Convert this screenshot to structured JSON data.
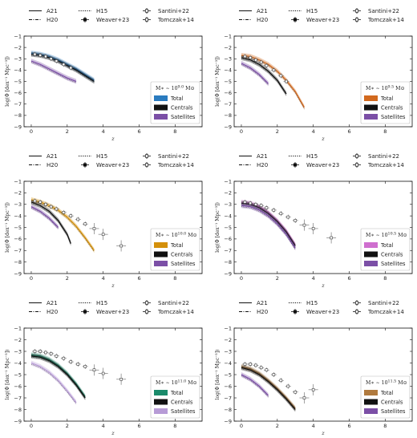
{
  "chart_data": [
    {
      "type": "line",
      "mass_label": "M∗ ∼ 10^9.0 M⊙",
      "xlabel": "z",
      "ylabel": "log(Φ [dex⁻¹ Mpc⁻³])",
      "xlim": [
        -0.4,
        9.5
      ],
      "ylim": [
        -9,
        -1
      ],
      "xticks": [
        0,
        2,
        4,
        6,
        8
      ],
      "yticks": [
        -9,
        -8,
        -7,
        -6,
        -5,
        -4,
        -3,
        -2,
        -1
      ],
      "legend": [
        "A21",
        "H15",
        "Santini+22",
        "H20",
        "Weaver+23",
        "Tomczak+14"
      ],
      "inset_legend": [
        "Total",
        "Centrals",
        "Satellites"
      ],
      "colors": {
        "total": "#2a7bbf",
        "centrals": "#111111",
        "satellites": "#7b4fa6"
      },
      "series": [
        {
          "name": "Total",
          "x": [
            0,
            0.5,
            1,
            1.5,
            2,
            2.5,
            3,
            3.5
          ],
          "y": [
            -2.5,
            -2.6,
            -2.8,
            -3.1,
            -3.5,
            -3.9,
            -4.4,
            -4.9
          ]
        },
        {
          "name": "Centrals",
          "x": [
            0,
            0.5,
            1,
            1.5,
            2,
            2.5,
            3,
            3.5
          ],
          "y": [
            -2.6,
            -2.7,
            -2.9,
            -3.2,
            -3.6,
            -4.0,
            -4.5,
            -5.0
          ]
        },
        {
          "name": "Satellites",
          "x": [
            0,
            0.5,
            1,
            1.5,
            2,
            2.5
          ],
          "y": [
            -3.2,
            -3.5,
            -3.9,
            -4.3,
            -4.7,
            -5.0
          ]
        }
      ],
      "observations": [
        {
          "x": [
            0.2,
            0.5,
            0.8,
            1.1,
            1.4,
            1.8,
            2.2
          ],
          "y": [
            -2.6,
            -2.7,
            -2.8,
            -3.0,
            -3.2,
            -3.5,
            -3.8
          ]
        }
      ]
    },
    {
      "type": "line",
      "mass_label": "M∗ ∼ 10^9.5 M⊙",
      "xlabel": "z",
      "ylabel": "log(Φ [dex⁻¹ Mpc⁻³])",
      "xlim": [
        -0.4,
        9.5
      ],
      "ylim": [
        -9,
        -1
      ],
      "xticks": [
        0,
        2,
        4,
        6,
        8
      ],
      "yticks": [
        -9,
        -8,
        -7,
        -6,
        -5,
        -4,
        -3,
        -2,
        -1
      ],
      "legend": [
        "A21",
        "H15",
        "Santini+22",
        "H20",
        "Weaver+23",
        "Tomczak+14"
      ],
      "inset_legend": [
        "Total",
        "Centrals",
        "Satellites"
      ],
      "colors": {
        "total": "#d2691e",
        "centrals": "#111111",
        "satellites": "#7b4fa6"
      },
      "series": [
        {
          "name": "Total",
          "x": [
            0,
            0.5,
            1,
            1.5,
            2,
            2.5,
            3,
            3.5
          ],
          "y": [
            -2.7,
            -2.8,
            -3.1,
            -3.5,
            -4.1,
            -4.9,
            -5.9,
            -7.3
          ]
        },
        {
          "name": "Centrals",
          "x": [
            0,
            0.5,
            1,
            1.5,
            2,
            2.5
          ],
          "y": [
            -2.9,
            -3.1,
            -3.5,
            -4.1,
            -4.9,
            -6.1
          ]
        },
        {
          "name": "Satellites",
          "x": [
            0,
            0.5,
            1,
            1.5
          ],
          "y": [
            -3.4,
            -3.8,
            -4.4,
            -5.2
          ]
        }
      ],
      "observations": [
        {
          "x": [
            0.2,
            0.5,
            0.8,
            1.1,
            1.4,
            1.8,
            2.2,
            2.5
          ],
          "y": [
            -2.8,
            -2.9,
            -3.1,
            -3.3,
            -3.6,
            -4.0,
            -4.5,
            -5.0
          ]
        }
      ]
    },
    {
      "type": "line",
      "mass_label": "M∗ ∼ 10^10.0 M⊙",
      "xlabel": "z",
      "ylabel": "log(Φ [dex⁻¹ Mpc⁻³])",
      "xlim": [
        -0.4,
        9.5
      ],
      "ylim": [
        -9,
        -1
      ],
      "xticks": [
        0,
        2,
        4,
        6,
        8
      ],
      "yticks": [
        -9,
        -8,
        -7,
        -6,
        -5,
        -4,
        -3,
        -2,
        -1
      ],
      "legend": [
        "A21",
        "H15",
        "Santini+22",
        "H20",
        "Weaver+23",
        "Tomczak+14"
      ],
      "inset_legend": [
        "Total",
        "Centrals",
        "Satellites"
      ],
      "colors": {
        "total": "#d4900a",
        "centrals": "#111111",
        "satellites": "#7b4fa6"
      },
      "series": [
        {
          "name": "Total",
          "x": [
            0,
            0.5,
            1,
            1.5,
            2,
            2.5,
            3,
            3.5
          ],
          "y": [
            -2.6,
            -2.8,
            -3.1,
            -3.5,
            -4.1,
            -4.9,
            -5.9,
            -7.0
          ]
        },
        {
          "name": "Centrals",
          "x": [
            0,
            0.5,
            1,
            1.5,
            2,
            2.2
          ],
          "y": [
            -2.8,
            -3.1,
            -3.6,
            -4.4,
            -5.6,
            -6.4
          ]
        },
        {
          "name": "Satellites",
          "x": [
            0,
            0.5,
            1,
            1.5
          ],
          "y": [
            -3.2,
            -3.6,
            -4.2,
            -5.0
          ]
        }
      ],
      "observations": [
        {
          "x": [
            0.2,
            0.5,
            0.8,
            1.1,
            1.4,
            1.8,
            2.2,
            2.6,
            3.0,
            3.5,
            4.0,
            5.0
          ],
          "y": [
            -2.7,
            -2.8,
            -3.0,
            -3.2,
            -3.4,
            -3.7,
            -4.0,
            -4.3,
            -4.7,
            -5.1,
            -5.6,
            -6.6
          ]
        }
      ]
    },
    {
      "type": "line",
      "mass_label": "M∗ ∼ 10^10.5 M⊙",
      "xlabel": "z",
      "ylabel": "log(Φ [dex⁻¹ Mpc⁻³])",
      "xlim": [
        -0.4,
        9.5
      ],
      "ylim": [
        -9,
        -1
      ],
      "xticks": [
        0,
        2,
        4,
        6,
        8
      ],
      "yticks": [
        -9,
        -8,
        -7,
        -6,
        -5,
        -4,
        -3,
        -2,
        -1
      ],
      "legend": [
        "A21",
        "H15",
        "Santini+22",
        "H20",
        "Weaver+23",
        "Tomczak+14"
      ],
      "inset_legend": [
        "Total",
        "Centrals",
        "Satellites"
      ],
      "colors": {
        "total": "#cf6fcf",
        "centrals": "#111111",
        "satellites": "#7b4fa6"
      },
      "series": [
        {
          "name": "Total",
          "x": [
            0,
            0.5,
            1,
            1.5,
            2,
            2.5,
            3
          ],
          "y": [
            -2.8,
            -2.9,
            -3.2,
            -3.7,
            -4.4,
            -5.3,
            -6.5
          ]
        },
        {
          "name": "Centrals",
          "x": [
            0,
            0.5,
            1,
            1.5,
            2,
            2.5,
            3
          ],
          "y": [
            -2.9,
            -3.0,
            -3.3,
            -3.8,
            -4.5,
            -5.4,
            -6.6
          ]
        },
        {
          "name": "Satellites",
          "x": [
            0,
            0.5,
            1,
            1.5,
            2,
            2.5,
            3
          ],
          "y": [
            -3.1,
            -3.2,
            -3.5,
            -4.0,
            -4.7,
            -5.6,
            -6.8
          ]
        }
      ],
      "observations": [
        {
          "x": [
            0.2,
            0.5,
            0.8,
            1.1,
            1.4,
            1.8,
            2.2,
            2.6,
            3.0,
            3.5,
            4.0,
            5.0
          ],
          "y": [
            -2.8,
            -2.9,
            -3.0,
            -3.1,
            -3.3,
            -3.5,
            -3.8,
            -4.1,
            -4.4,
            -4.8,
            -5.1,
            -5.9
          ]
        }
      ]
    },
    {
      "type": "line",
      "mass_label": "M∗ ∼ 10^11.0 M⊙",
      "xlabel": "z",
      "ylabel": "log(Φ [dex⁻¹ Mpc⁻³])",
      "xlim": [
        -0.4,
        9.5
      ],
      "ylim": [
        -9,
        -1
      ],
      "xticks": [
        0,
        2,
        4,
        6,
        8
      ],
      "yticks": [
        -9,
        -8,
        -7,
        -6,
        -5,
        -4,
        -3,
        -2,
        -1
      ],
      "legend": [
        "A21",
        "H15",
        "Santini+22",
        "H20",
        "Weaver+23",
        "Tomczak+14"
      ],
      "inset_legend": [
        "Total",
        "Centrals",
        "Satellites"
      ],
      "colors": {
        "total": "#1a8a6a",
        "centrals": "#111111",
        "satellites": "#b79bd6"
      },
      "series": [
        {
          "name": "Total",
          "x": [
            0,
            0.5,
            1,
            1.5,
            2,
            2.5,
            3
          ],
          "y": [
            -3.3,
            -3.4,
            -3.7,
            -4.2,
            -4.9,
            -5.8,
            -6.9
          ]
        },
        {
          "name": "Centrals",
          "x": [
            0,
            0.5,
            1,
            1.5,
            2,
            2.5,
            3
          ],
          "y": [
            -3.4,
            -3.5,
            -3.8,
            -4.3,
            -5.0,
            -5.9,
            -7.0
          ]
        },
        {
          "name": "Satellites",
          "x": [
            0,
            0.5,
            1,
            1.5,
            2,
            2.5
          ],
          "y": [
            -4.0,
            -4.3,
            -4.8,
            -5.5,
            -6.4,
            -7.4
          ]
        }
      ],
      "observations": [
        {
          "x": [
            0.2,
            0.5,
            0.8,
            1.1,
            1.4,
            1.8,
            2.2,
            2.6,
            3.0,
            3.5,
            4.0,
            5.0
          ],
          "y": [
            -3.0,
            -3.0,
            -3.1,
            -3.2,
            -3.4,
            -3.6,
            -3.9,
            -4.1,
            -4.3,
            -4.6,
            -4.9,
            -5.4
          ]
        }
      ]
    },
    {
      "type": "line",
      "mass_label": "M∗ ∼ 10^11.5 M⊙",
      "xlabel": "z",
      "ylabel": "log(Φ [dex⁻¹ Mpc⁻³])",
      "xlim": [
        -0.4,
        9.5
      ],
      "ylim": [
        -9,
        -1
      ],
      "xticks": [
        0,
        2,
        4,
        6,
        8
      ],
      "yticks": [
        -9,
        -8,
        -7,
        -6,
        -5,
        -4,
        -3,
        -2,
        -1
      ],
      "legend": [
        "A21",
        "H15",
        "Santini+22",
        "H20",
        "Weaver+23",
        "Tomczak+14"
      ],
      "inset_legend": [
        "Total",
        "Centrals",
        "Satellites"
      ],
      "colors": {
        "total": "#b07a3e",
        "centrals": "#111111",
        "satellites": "#7b4fa6"
      },
      "series": [
        {
          "name": "Total",
          "x": [
            0,
            0.5,
            1,
            1.5,
            2,
            2.5,
            3
          ],
          "y": [
            -4.3,
            -4.5,
            -4.9,
            -5.5,
            -6.2,
            -7.0,
            -7.9
          ]
        },
        {
          "name": "Centrals",
          "x": [
            0,
            0.5,
            1,
            1.5,
            2,
            2.5,
            3
          ],
          "y": [
            -4.4,
            -4.6,
            -5.0,
            -5.6,
            -6.3,
            -7.1,
            -8.0
          ]
        },
        {
          "name": "Satellites",
          "x": [
            0,
            0.5,
            1,
            1.5
          ],
          "y": [
            -5.0,
            -5.4,
            -6.0,
            -6.8
          ]
        }
      ],
      "observations": [
        {
          "x": [
            0.2,
            0.5,
            0.8,
            1.1,
            1.4,
            1.8,
            2.2,
            2.6,
            3.0,
            3.5,
            4.0
          ],
          "y": [
            -4.1,
            -4.1,
            -4.2,
            -4.4,
            -4.6,
            -5.0,
            -5.5,
            -6.0,
            -6.5,
            -7.0,
            -6.3
          ]
        }
      ]
    }
  ]
}
